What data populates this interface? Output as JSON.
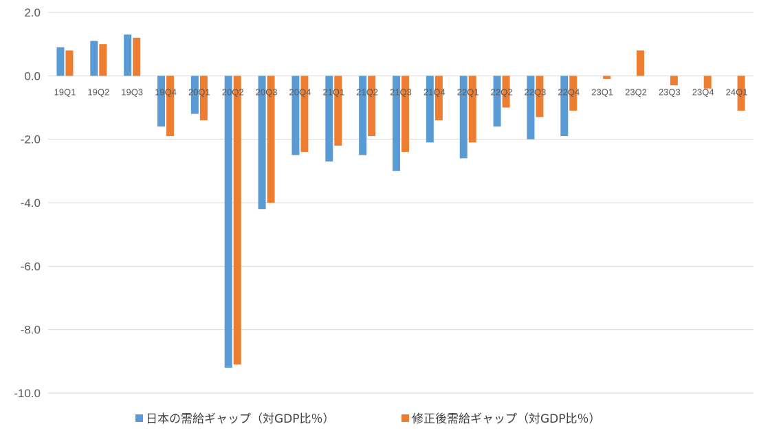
{
  "chart_data": {
    "type": "bar",
    "title": "",
    "xlabel": "",
    "ylabel": "",
    "ylim": [
      -10,
      2
    ],
    "yticks": [
      2,
      0,
      -2,
      -4,
      -6,
      -8,
      -10
    ],
    "ytick_labels": [
      "2.0",
      "0.0",
      "-2.0",
      "-4.0",
      "-6.0",
      "-8.0",
      "-10.0"
    ],
    "grid": true,
    "legend_position": "bottom",
    "categories": [
      "19Q1",
      "19Q2",
      "19Q3",
      "19Q4",
      "20Q1",
      "20Q2",
      "20Q3",
      "20Q4",
      "21Q1",
      "21Q2",
      "21Q3",
      "21Q4",
      "22Q1",
      "22Q2",
      "22Q3",
      "22Q4",
      "23Q1",
      "23Q2",
      "23Q3",
      "23Q4",
      "24Q1"
    ],
    "series": [
      {
        "name": "日本の需給ギャップ（対GDP比％）",
        "color": "#5b9bd5",
        "values": [
          0.9,
          1.1,
          1.3,
          -1.6,
          -1.2,
          -9.2,
          -4.2,
          -2.5,
          -2.7,
          -2.5,
          -3.0,
          -2.1,
          -2.6,
          -1.6,
          -2.0,
          -1.9,
          null,
          null,
          null,
          null,
          null
        ]
      },
      {
        "name": "修正後需給ギャップ（対GDP比％）",
        "color": "#ed7d31",
        "values": [
          0.8,
          1.0,
          1.2,
          -1.9,
          -1.4,
          -9.1,
          -4.0,
          -2.4,
          -2.2,
          -1.9,
          -2.4,
          -1.4,
          -2.1,
          -1.0,
          -1.3,
          -1.1,
          -0.1,
          0.8,
          -0.3,
          -0.4,
          -1.1
        ]
      }
    ]
  }
}
